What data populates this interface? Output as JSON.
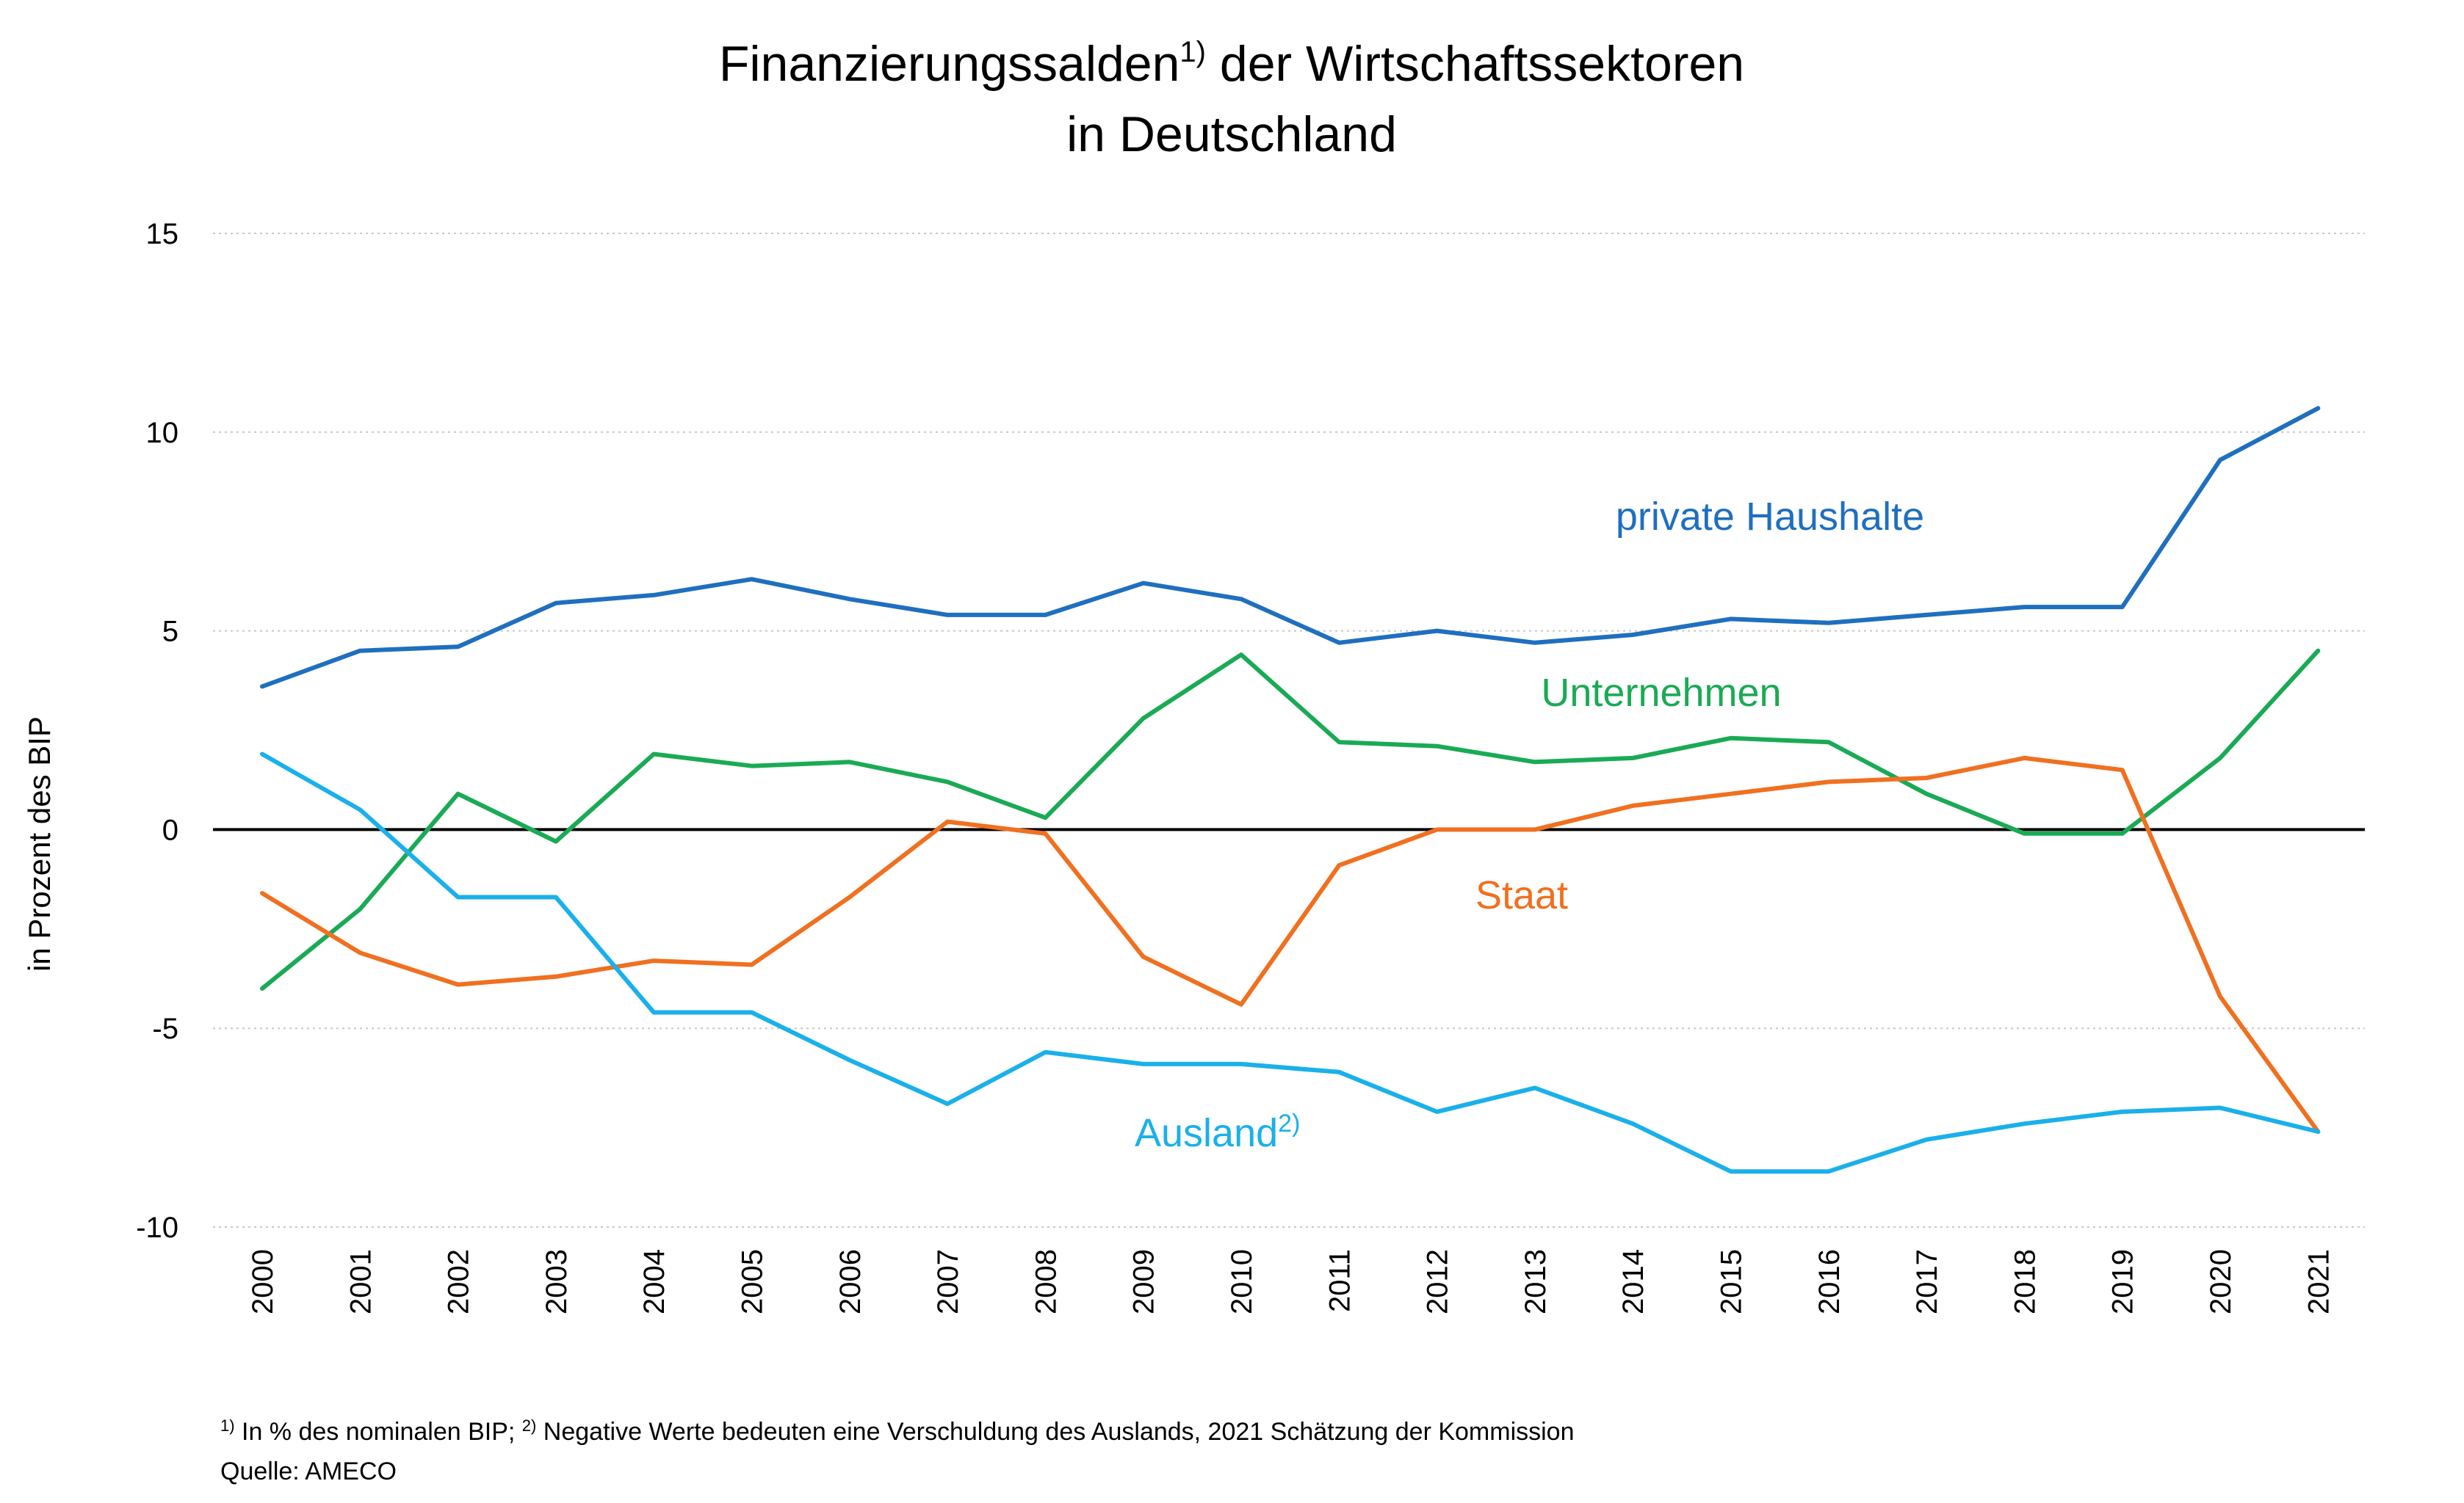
{
  "chart_data": {
    "type": "line",
    "title_line1": "Finanzierungssalden",
    "title_sup": "1)",
    "title_line1_rest": " der Wirtschaftssektoren",
    "title_line2": "in Deutschland",
    "ylabel": "in Prozent des BIP",
    "ylim": [
      -10,
      15
    ],
    "yticks": [
      15,
      10,
      5,
      0,
      -5,
      -10
    ],
    "ytick_labels": [
      "15",
      "10",
      "5",
      "0",
      "-5",
      "-10"
    ],
    "grid": "horizontal dotted",
    "categories": [
      "2000",
      "2001",
      "2002",
      "2003",
      "2004",
      "2005",
      "2006",
      "2007",
      "2008",
      "2009",
      "2010",
      "2011",
      "2012",
      "2013",
      "2014",
      "2015",
      "2016",
      "2017",
      "2018",
      "2019",
      "2020",
      "2021"
    ],
    "series": [
      {
        "name": "private Haushalte",
        "color": "#1f6fbf",
        "values": [
          3.6,
          4.5,
          4.6,
          5.7,
          5.9,
          6.3,
          5.8,
          5.4,
          5.4,
          6.2,
          5.8,
          4.7,
          5.0,
          4.7,
          4.9,
          5.3,
          5.2,
          5.4,
          5.6,
          5.6,
          9.3,
          10.6
        ]
      },
      {
        "name": "Unternehmen",
        "color": "#1aaa55",
        "values": [
          -4.0,
          -2.0,
          0.9,
          -0.3,
          1.9,
          1.6,
          1.7,
          1.2,
          0.3,
          2.8,
          4.4,
          2.2,
          2.1,
          1.7,
          1.8,
          2.3,
          2.2,
          0.9,
          -0.1,
          -0.1,
          1.8,
          4.5
        ]
      },
      {
        "name": "Staat",
        "color": "#f07020",
        "values": [
          -1.6,
          -3.1,
          -3.9,
          -3.7,
          -3.3,
          -3.4,
          -1.7,
          0.2,
          -0.1,
          -3.2,
          -4.4,
          -0.9,
          0.0,
          0.0,
          0.6,
          0.9,
          1.2,
          1.3,
          1.8,
          1.5,
          -4.2,
          -7.6
        ]
      },
      {
        "name": "Ausland",
        "name_sup": "2)",
        "color": "#1ab0ea",
        "values": [
          1.9,
          0.5,
          -1.7,
          -1.7,
          -4.6,
          -4.6,
          -5.8,
          -6.9,
          -5.6,
          -5.9,
          -5.9,
          -6.1,
          -7.1,
          -6.5,
          -7.4,
          -8.6,
          -8.6,
          -7.8,
          -7.4,
          -7.1,
          -7.0,
          -7.6
        ]
      }
    ],
    "footnote_sup1": "1)",
    "footnote_part1": " In % des nominalen BIP; ",
    "footnote_sup2": "2)",
    "footnote_part2": " Negative Werte bedeuten eine Verschuldung des Auslands, 2021 Schätzung der Kommission",
    "source": "Quelle: AMECO"
  }
}
